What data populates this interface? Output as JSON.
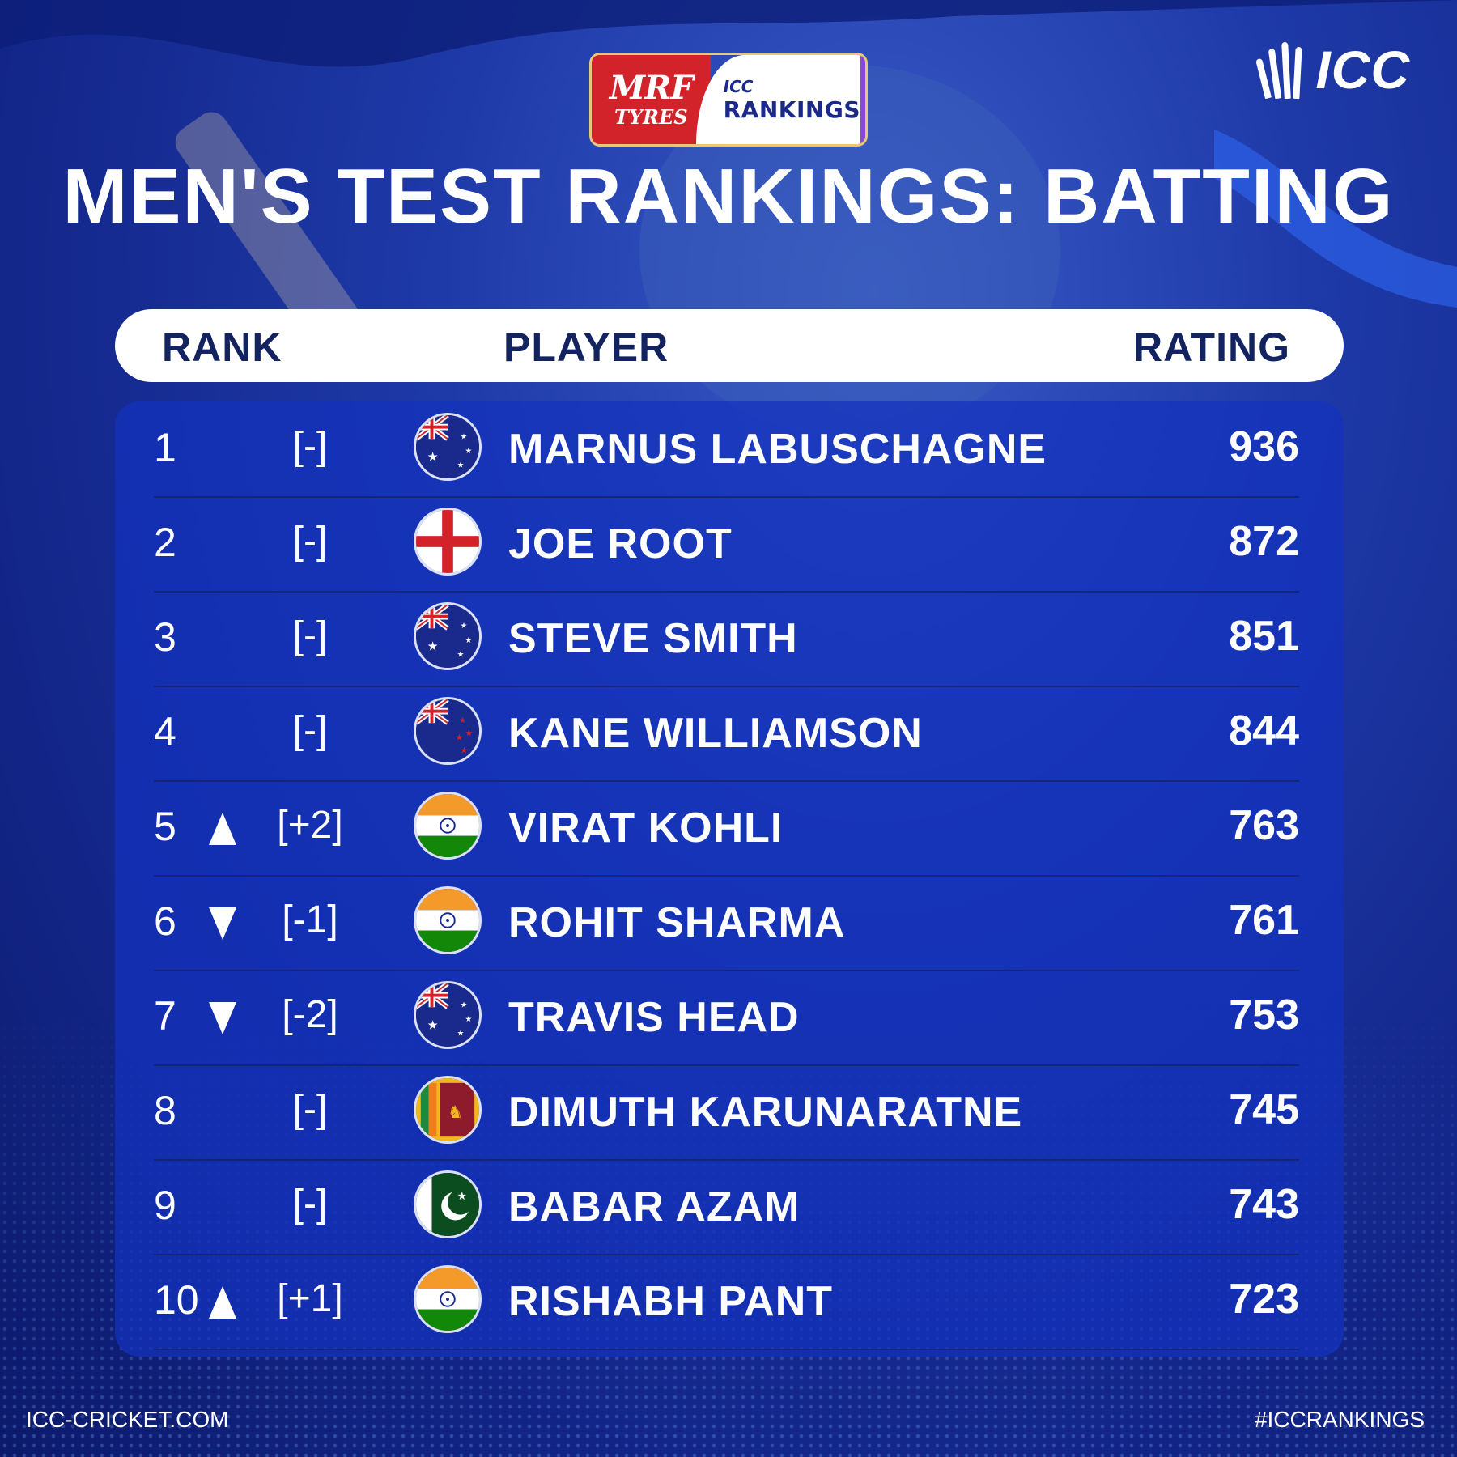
{
  "sponsor": {
    "mrf_line1": "MRF",
    "mrf_line2": "TYRES",
    "icc_small": "ICC",
    "icc_big": "RANKINGS"
  },
  "logo": {
    "text": "ICC"
  },
  "title": "MEN'S TEST RANKINGS: BATTING",
  "header": {
    "rank": "RANK",
    "player": "PLAYER",
    "rating": "RATING"
  },
  "rows": [
    {
      "rank": "1",
      "change": "[-]",
      "trend": "none",
      "flag": "australia-flag-icon",
      "player": "MARNUS LABUSCHAGNE",
      "rating": "936"
    },
    {
      "rank": "2",
      "change": "[-]",
      "trend": "none",
      "flag": "england-flag-icon",
      "player": "JOE ROOT",
      "rating": "872"
    },
    {
      "rank": "3",
      "change": "[-]",
      "trend": "none",
      "flag": "australia-flag-icon",
      "player": "STEVE SMITH",
      "rating": "851"
    },
    {
      "rank": "4",
      "change": "[-]",
      "trend": "none",
      "flag": "new-zealand-flag-icon",
      "player": "KANE WILLIAMSON",
      "rating": "844"
    },
    {
      "rank": "5",
      "change": "[+2]",
      "trend": "up",
      "flag": "india-flag-icon",
      "player": "VIRAT KOHLI",
      "rating": "763"
    },
    {
      "rank": "6",
      "change": "[-1]",
      "trend": "down",
      "flag": "india-flag-icon",
      "player": "ROHIT SHARMA",
      "rating": "761"
    },
    {
      "rank": "7",
      "change": "[-2]",
      "trend": "down",
      "flag": "australia-flag-icon",
      "player": "TRAVIS HEAD",
      "rating": "753"
    },
    {
      "rank": "8",
      "change": "[-]",
      "trend": "none",
      "flag": "sri-lanka-flag-icon",
      "player": "DIMUTH KARUNARATNE",
      "rating": "745"
    },
    {
      "rank": "9",
      "change": "[-]",
      "trend": "none",
      "flag": "pakistan-flag-icon",
      "player": "BABAR AZAM",
      "rating": "743"
    },
    {
      "rank": "10",
      "change": "[+1]",
      "trend": "up",
      "flag": "india-flag-icon",
      "player": "RISHABH PANT",
      "rating": "723"
    }
  ],
  "footer": {
    "left": "ICC-CRICKET.COM",
    "right": "#ICCRANKINGS"
  }
}
